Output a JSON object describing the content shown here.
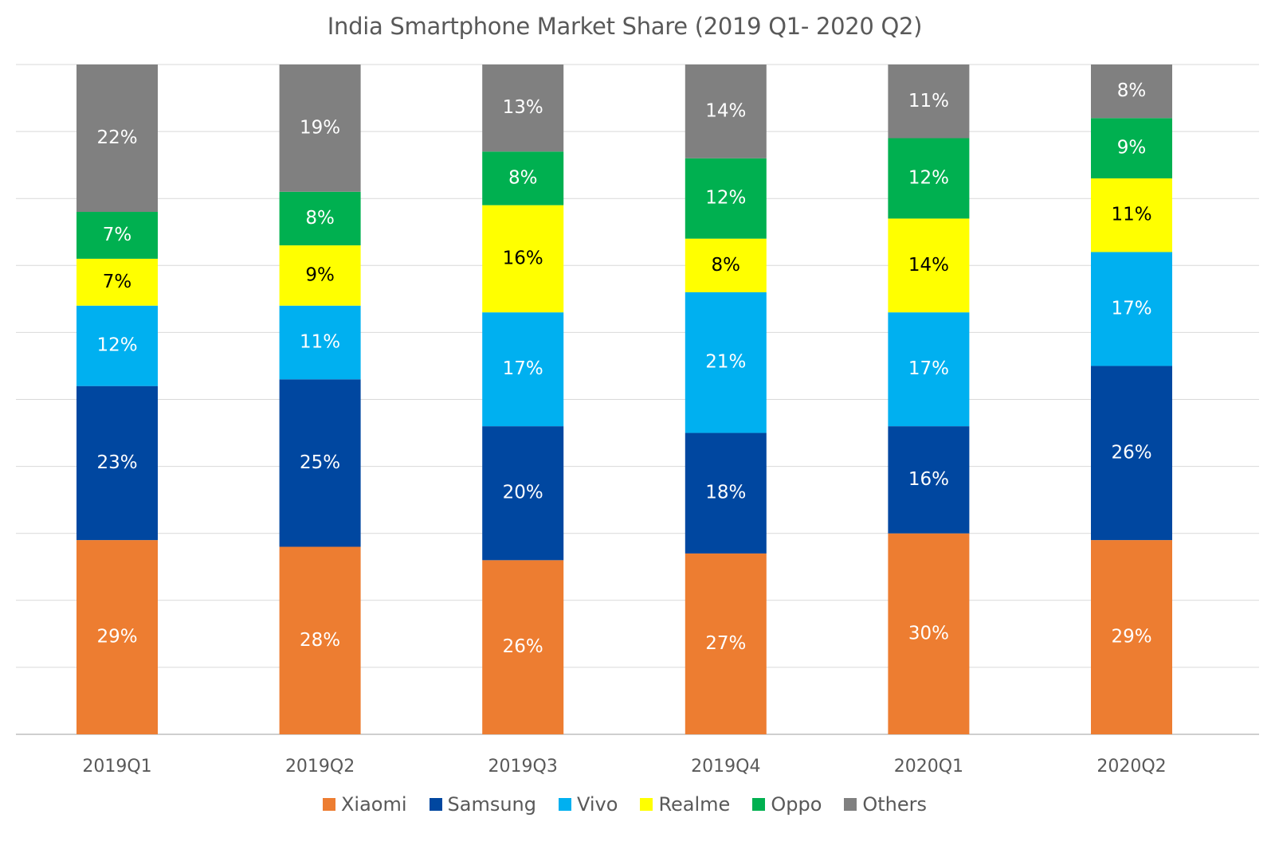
{
  "chart_data": {
    "type": "bar",
    "stacked": true,
    "title": "India Smartphone Market Share (2019 Q1- 2020 Q2)",
    "xlabel": "",
    "ylabel": "",
    "ylim": [
      0,
      100
    ],
    "y_unit": "%",
    "grid": true,
    "legend_position": "bottom",
    "categories": [
      "2019Q1",
      "2019Q2",
      "2019Q3",
      "2019Q4",
      "2020Q1",
      "2020Q2"
    ],
    "series": [
      {
        "name": "Xiaomi",
        "color": "#ED7D31",
        "label_color": "#FFFFFF",
        "values": [
          29,
          28,
          26,
          27,
          30,
          29
        ]
      },
      {
        "name": "Samsung",
        "color": "#0047A0",
        "label_color": "#FFFFFF",
        "values": [
          23,
          25,
          20,
          18,
          16,
          26
        ]
      },
      {
        "name": "Vivo",
        "color": "#00B0F0",
        "label_color": "#FFFFFF",
        "values": [
          12,
          11,
          17,
          21,
          17,
          17
        ]
      },
      {
        "name": "Realme",
        "color": "#FFFF00",
        "label_color": "#000000",
        "values": [
          7,
          9,
          16,
          8,
          14,
          11
        ]
      },
      {
        "name": "Oppo",
        "color": "#00B050",
        "label_color": "#FFFFFF",
        "values": [
          7,
          8,
          8,
          12,
          12,
          9
        ]
      },
      {
        "name": "Others",
        "color": "#808080",
        "label_color": "#FFFFFF",
        "values": [
          22,
          19,
          13,
          14,
          11,
          8
        ]
      }
    ]
  }
}
